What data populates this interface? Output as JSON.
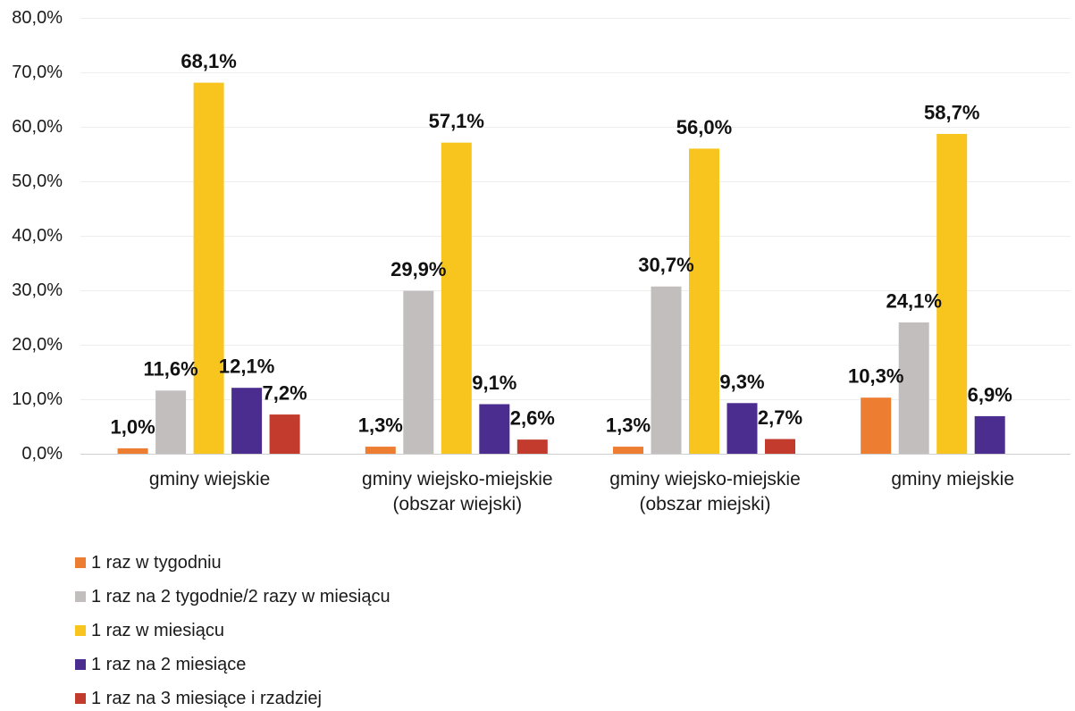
{
  "chart_data": {
    "type": "bar",
    "categories": [
      "gminy wiejskie",
      "gminy wiejsko-miejskie (obszar wiejski)",
      "gminy wiejsko-miejskie (obszar miejski)",
      "gminy miejskie"
    ],
    "series": [
      {
        "name": "1 raz w tygodniu",
        "color": "#ED7D31",
        "values": [
          1.0,
          1.3,
          1.3,
          10.3
        ],
        "labels": [
          "1,0%",
          "1,3%",
          "1,3%",
          "10,3%"
        ]
      },
      {
        "name": "1 raz na 2 tygodnie/2 razy w miesiącu",
        "color": "#C2BEBE",
        "values": [
          11.6,
          29.9,
          30.7,
          24.1
        ],
        "labels": [
          "11,6%",
          "29,9%",
          "30,7%",
          "24,1%"
        ]
      },
      {
        "name": "1 raz w miesiącu",
        "color": "#F7C51E",
        "values": [
          68.1,
          57.1,
          56.0,
          58.7
        ],
        "labels": [
          "68,1%",
          "57,1%",
          "56,0%",
          "58,7%"
        ]
      },
      {
        "name": "1 raz na 2 miesiące",
        "color": "#4B2D8F",
        "values": [
          12.1,
          9.1,
          9.3,
          6.9
        ],
        "labels": [
          "12,1%",
          "9,1%",
          "9,3%",
          "6,9%"
        ]
      },
      {
        "name": "1 raz na 3 miesiące i rzadziej",
        "color": "#C23B2C",
        "values": [
          7.2,
          2.6,
          2.7,
          null
        ],
        "labels": [
          "7,2%",
          "2,6%",
          "2,7%",
          null
        ]
      }
    ],
    "ylim": [
      0,
      80
    ],
    "yticks": [
      0,
      10,
      20,
      30,
      40,
      50,
      60,
      70,
      80
    ],
    "ytick_labels": [
      "0,0%",
      "10,0%",
      "20,0%",
      "30,0%",
      "40,0%",
      "50,0%",
      "60,0%",
      "70,0%",
      "80,0%"
    ],
    "grid": true,
    "legend": "bottom-left"
  }
}
